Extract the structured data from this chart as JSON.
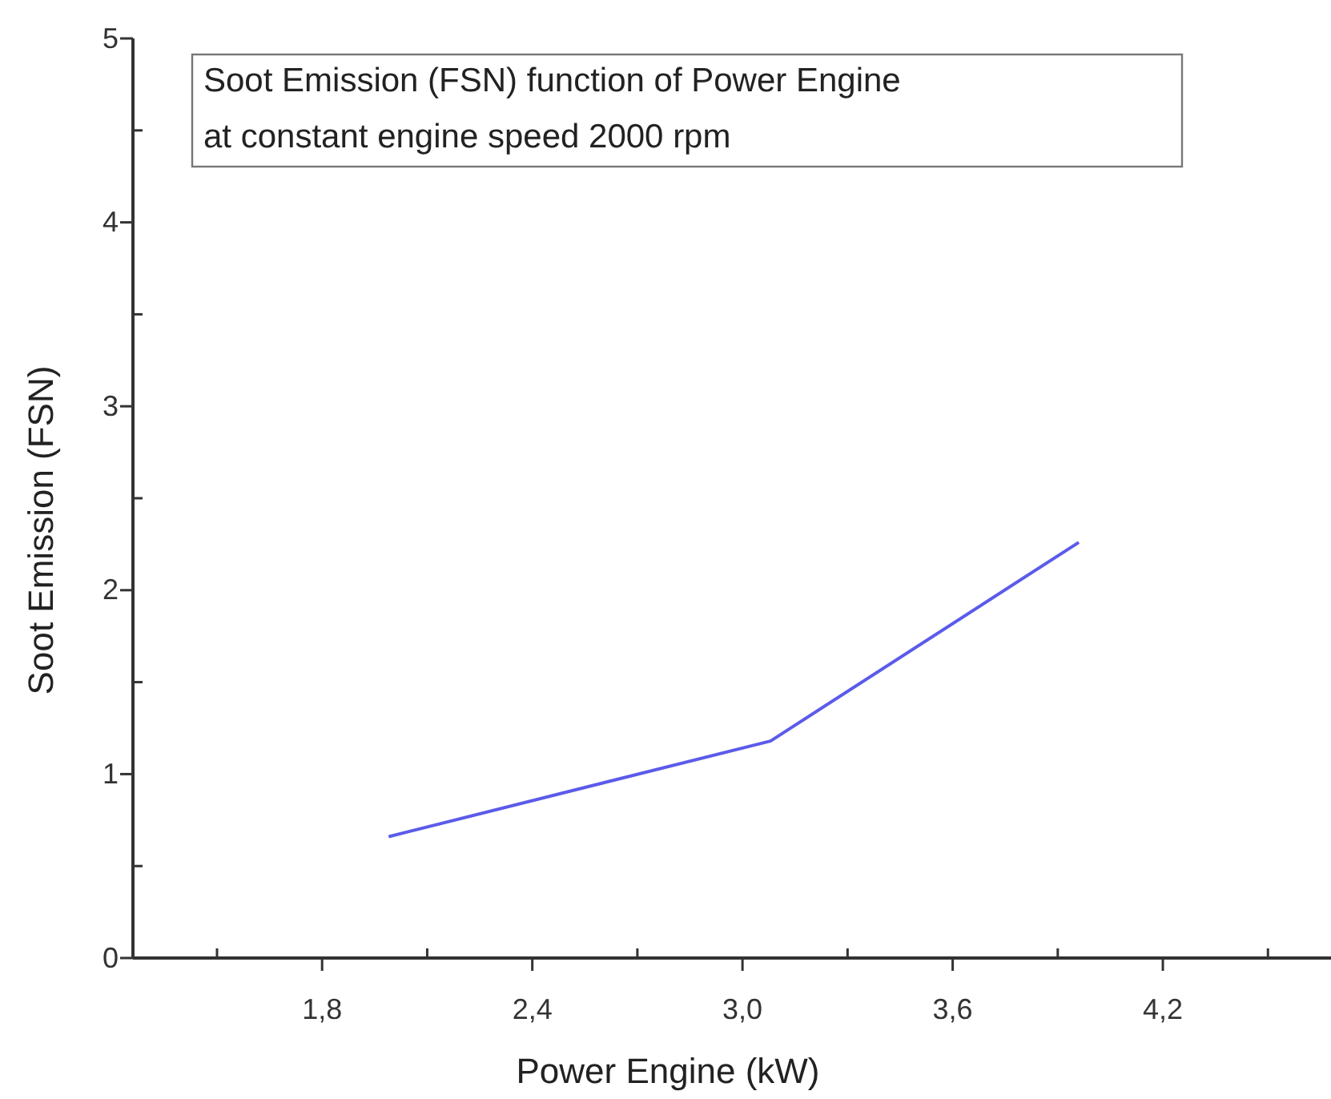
{
  "chart_data": {
    "type": "line",
    "title": "Soot Emission (FSN) function of Power Engine",
    "subtitle": "at constant engine speed 2000 rpm",
    "xlabel": "Power Engine (kW)",
    "ylabel": "Soot Emission (FSN)",
    "x": [
      1.99,
      3.08,
      3.96
    ],
    "series": [
      {
        "color": "#5b5bea",
        "values": [
          0.66,
          1.18,
          2.26
        ]
      }
    ],
    "xlim": [
      1.26,
      4.68
    ],
    "ylim": [
      0,
      5
    ],
    "xticks": [
      {
        "value": 1.5,
        "label": null
      },
      {
        "value": 1.8,
        "label": "1,8"
      },
      {
        "value": 2.1,
        "label": null
      },
      {
        "value": 2.4,
        "label": "2,4"
      },
      {
        "value": 2.7,
        "label": null
      },
      {
        "value": 3.0,
        "label": "3,0"
      },
      {
        "value": 3.3,
        "label": null
      },
      {
        "value": 3.6,
        "label": "3,6"
      },
      {
        "value": 3.9,
        "label": null
      },
      {
        "value": 4.2,
        "label": "4,2"
      },
      {
        "value": 4.5,
        "label": null
      }
    ],
    "yticks": [
      0,
      {
        "value": 0.5,
        "label": null
      },
      1,
      {
        "value": 1.5,
        "label": null
      },
      2,
      {
        "value": 2.5,
        "label": null
      },
      3,
      {
        "value": 3.5,
        "label": null
      },
      4,
      {
        "value": 4.5,
        "label": null
      },
      5
    ],
    "grid": false,
    "marker": "none",
    "line_style": "solid"
  }
}
